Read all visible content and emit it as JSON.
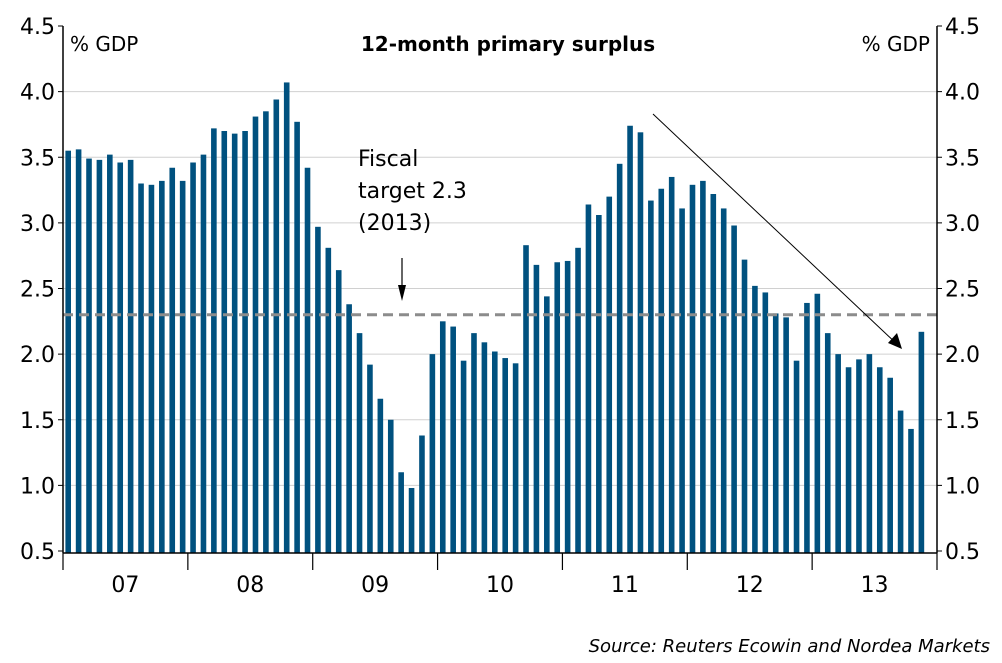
{
  "chart_data": {
    "type": "bar",
    "title": "12-month primary surplus",
    "ylabel_left": "% GDP",
    "ylabel_right": "% GDP",
    "ylim": [
      0.5,
      4.5
    ],
    "yticks": [
      "0.5",
      "1.0",
      "1.5",
      "2.0",
      "2.5",
      "3.0",
      "3.5",
      "4.0",
      "4.5"
    ],
    "ytick_values": [
      0.5,
      1.0,
      1.5,
      2.0,
      2.5,
      3.0,
      3.5,
      4.0,
      4.5
    ],
    "grid": true,
    "year_labels": [
      "07",
      "08",
      "09",
      "10",
      "11",
      "12",
      "13"
    ],
    "frequency": "monthly, Jan 2007 - Nov 2013",
    "values": [
      3.55,
      3.56,
      3.49,
      3.48,
      3.52,
      3.46,
      3.48,
      3.3,
      3.29,
      3.32,
      3.42,
      3.32,
      3.46,
      3.52,
      3.72,
      3.7,
      3.68,
      3.7,
      3.81,
      3.85,
      3.94,
      4.07,
      3.77,
      3.42,
      2.97,
      2.81,
      2.64,
      2.38,
      2.16,
      1.92,
      1.66,
      1.5,
      1.1,
      0.98,
      1.38,
      2.0,
      2.25,
      2.21,
      1.95,
      2.16,
      2.09,
      2.02,
      1.97,
      1.93,
      2.83,
      2.68,
      2.44,
      2.7,
      2.71,
      2.81,
      3.14,
      3.06,
      3.2,
      3.45,
      3.74,
      3.69,
      3.17,
      3.26,
      3.35,
      3.11,
      3.29,
      3.32,
      3.22,
      3.11,
      2.98,
      2.72,
      2.52,
      2.47,
      2.31,
      2.28,
      1.95,
      2.39,
      2.46,
      2.16,
      2.0,
      1.9,
      1.96,
      2.0,
      1.9,
      1.82,
      1.57,
      1.43,
      2.17
    ],
    "reference_line": {
      "value": 2.3,
      "style": "dashed"
    },
    "annotations": {
      "fiscal_target_lines": [
        "Fiscal",
        "target 2.3",
        "(2013)"
      ]
    },
    "source": "Source: Reuters Ecowin and Nordea Markets",
    "colors": {
      "bar": "#00517f",
      "grid": "#d0d0d0",
      "reference": "#8c8c8c"
    }
  }
}
